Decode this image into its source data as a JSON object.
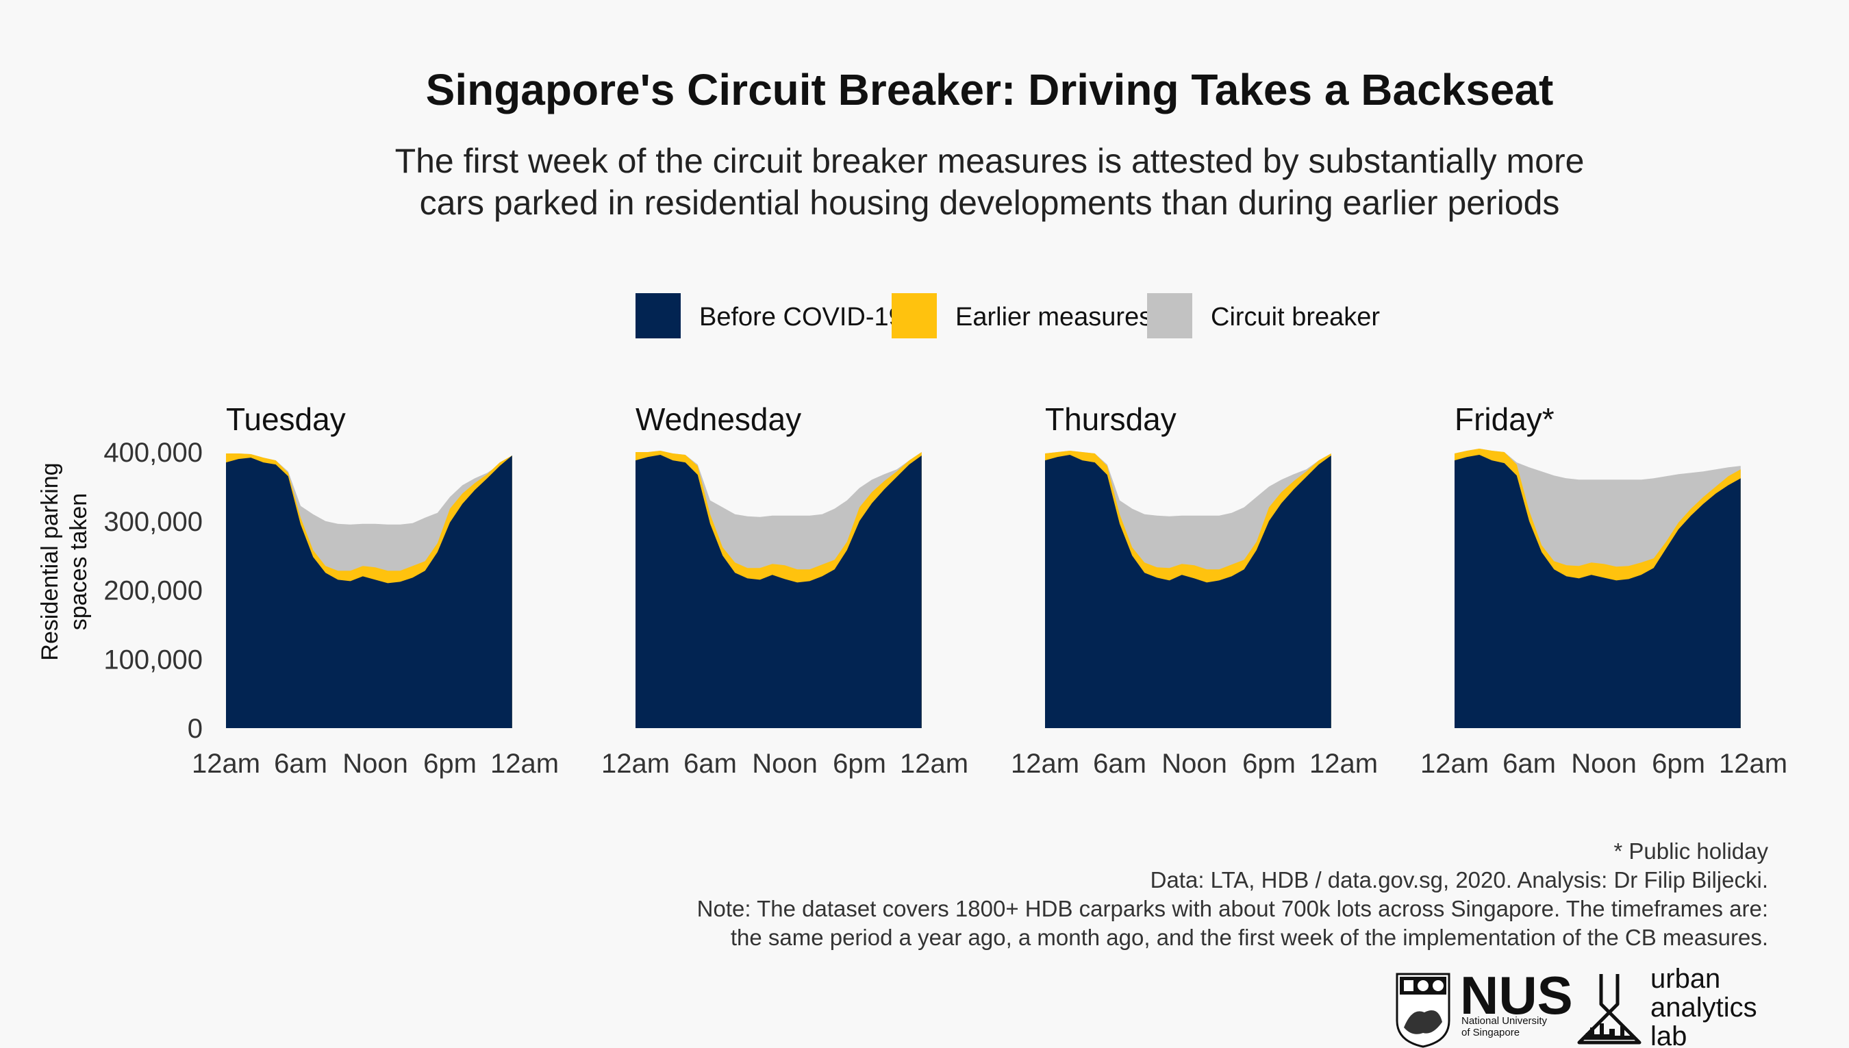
{
  "header": {
    "title": "Singapore's Circuit Breaker: Driving Takes a Backseat",
    "subtitle_lines": [
      "The first week of the circuit breaker measures is attested by substantially more",
      "cars parked in residential housing developments than during earlier periods"
    ]
  },
  "legend": [
    {
      "label": "Before COVID-19",
      "color": "#022452"
    },
    {
      "label": "Earlier measures",
      "color": "#ffc20e"
    },
    {
      "label": "Circuit breaker",
      "color": "#c2c2c2"
    }
  ],
  "chart_data": [
    {
      "type": "area",
      "title": "Tuesday",
      "ylabel": "Residential parking spaces taken",
      "ylim": [
        0,
        400000
      ],
      "yticks": [
        0,
        100000,
        200000,
        300000,
        400000
      ],
      "ytick_labels": [
        "0",
        "100,000",
        "200,000",
        "300,000",
        "400,000"
      ],
      "xlim": [
        0,
        24
      ],
      "xticks": [
        0,
        6,
        12,
        18,
        24
      ],
      "xtick_labels": [
        "12am",
        "6am",
        "Noon",
        "6pm",
        "12am"
      ],
      "x": [
        0,
        1,
        2,
        3,
        4,
        5,
        6,
        7,
        8,
        9,
        10,
        11,
        12,
        13,
        14,
        15,
        16,
        17,
        18,
        19,
        20,
        21,
        22,
        23
      ],
      "series": [
        {
          "name": "Before COVID-19",
          "color": "#022452",
          "values": [
            385000,
            390000,
            392000,
            385000,
            382000,
            365000,
            295000,
            248000,
            225000,
            215000,
            213000,
            220000,
            215000,
            210000,
            212000,
            218000,
            228000,
            255000,
            298000,
            325000,
            345000,
            362000,
            380000,
            395000
          ]
        },
        {
          "name": "Earlier measures",
          "color": "#ffc20e",
          "values": [
            398000,
            398000,
            397000,
            392000,
            388000,
            370000,
            305000,
            258000,
            235000,
            228000,
            228000,
            235000,
            233000,
            228000,
            228000,
            235000,
            242000,
            268000,
            318000,
            340000,
            355000,
            368000,
            385000,
            395000
          ]
        },
        {
          "name": "Circuit breaker",
          "color": "#c2c2c2",
          "values": [
            398000,
            398000,
            397000,
            392000,
            388000,
            372000,
            322000,
            310000,
            300000,
            296000,
            295000,
            296000,
            296000,
            295000,
            295000,
            297000,
            305000,
            312000,
            335000,
            352000,
            362000,
            370000,
            382000,
            395000
          ]
        }
      ]
    },
    {
      "type": "area",
      "title": "Wednesday",
      "ylim": [
        0,
        400000
      ],
      "xlim": [
        0,
        24
      ],
      "xticks": [
        0,
        6,
        12,
        18,
        24
      ],
      "xtick_labels": [
        "12am",
        "6am",
        "Noon",
        "6pm",
        "12am"
      ],
      "x": [
        0,
        1,
        2,
        3,
        4,
        5,
        6,
        7,
        8,
        9,
        10,
        11,
        12,
        13,
        14,
        15,
        16,
        17,
        18,
        19,
        20,
        21,
        22,
        23
      ],
      "series": [
        {
          "name": "Before COVID-19",
          "color": "#022452",
          "values": [
            388000,
            393000,
            396000,
            388000,
            385000,
            367000,
            296000,
            250000,
            225000,
            217000,
            215000,
            222000,
            216000,
            211000,
            213000,
            220000,
            230000,
            258000,
            300000,
            326000,
            346000,
            364000,
            382000,
            395000
          ]
        },
        {
          "name": "Earlier measures",
          "color": "#ffc20e",
          "values": [
            400000,
            400000,
            402000,
            398000,
            396000,
            380000,
            310000,
            262000,
            240000,
            232000,
            232000,
            238000,
            236000,
            230000,
            230000,
            237000,
            244000,
            270000,
            320000,
            342000,
            358000,
            372000,
            388000,
            400000
          ]
        },
        {
          "name": "Circuit breaker",
          "color": "#c2c2c2",
          "values": [
            400000,
            400000,
            402000,
            398000,
            396000,
            382000,
            330000,
            320000,
            310000,
            307000,
            306000,
            308000,
            308000,
            308000,
            308000,
            310000,
            318000,
            330000,
            348000,
            360000,
            368000,
            375000,
            388000,
            400000
          ]
        }
      ]
    },
    {
      "type": "area",
      "title": "Thursday",
      "ylim": [
        0,
        400000
      ],
      "xlim": [
        0,
        24
      ],
      "xticks": [
        0,
        6,
        12,
        18,
        24
      ],
      "xtick_labels": [
        "12am",
        "6am",
        "Noon",
        "6pm",
        "12am"
      ],
      "x": [
        0,
        1,
        2,
        3,
        4,
        5,
        6,
        7,
        8,
        9,
        10,
        11,
        12,
        13,
        14,
        15,
        16,
        17,
        18,
        19,
        20,
        21,
        22,
        23
      ],
      "series": [
        {
          "name": "Before COVID-19",
          "color": "#022452",
          "values": [
            388000,
            393000,
            396000,
            388000,
            385000,
            367000,
            296000,
            250000,
            225000,
            218000,
            214000,
            222000,
            217000,
            211000,
            214000,
            220000,
            230000,
            258000,
            300000,
            326000,
            346000,
            364000,
            382000,
            395000
          ]
        },
        {
          "name": "Earlier measures",
          "color": "#ffc20e",
          "values": [
            398000,
            400000,
            402000,
            400000,
            398000,
            380000,
            310000,
            262000,
            240000,
            233000,
            232000,
            238000,
            236000,
            230000,
            230000,
            237000,
            244000,
            270000,
            320000,
            342000,
            358000,
            372000,
            388000,
            398000
          ]
        },
        {
          "name": "Circuit breaker",
          "color": "#c2c2c2",
          "values": [
            398000,
            400000,
            402000,
            400000,
            398000,
            382000,
            330000,
            318000,
            310000,
            308000,
            307000,
            308000,
            308000,
            308000,
            308000,
            312000,
            320000,
            335000,
            350000,
            360000,
            368000,
            375000,
            388000,
            398000
          ]
        }
      ]
    },
    {
      "type": "area",
      "title": "Friday*",
      "ylim": [
        0,
        400000
      ],
      "xlim": [
        0,
        24
      ],
      "xticks": [
        0,
        6,
        12,
        18,
        24
      ],
      "xtick_labels": [
        "12am",
        "6am",
        "Noon",
        "6pm",
        "12am"
      ],
      "x": [
        0,
        1,
        2,
        3,
        4,
        5,
        6,
        7,
        8,
        9,
        10,
        11,
        12,
        13,
        14,
        15,
        16,
        17,
        18,
        19,
        20,
        21,
        22,
        23
      ],
      "series": [
        {
          "name": "Before COVID-19",
          "color": "#022452",
          "values": [
            388000,
            393000,
            396000,
            388000,
            384000,
            366000,
            300000,
            255000,
            230000,
            220000,
            217000,
            222000,
            218000,
            214000,
            216000,
            222000,
            232000,
            260000,
            288000,
            308000,
            325000,
            340000,
            352000,
            362000
          ]
        },
        {
          "name": "Earlier measures",
          "color": "#ffc20e",
          "values": [
            398000,
            402000,
            405000,
            402000,
            400000,
            382000,
            315000,
            265000,
            242000,
            236000,
            235000,
            240000,
            238000,
            234000,
            235000,
            240000,
            246000,
            270000,
            298000,
            318000,
            335000,
            350000,
            365000,
            375000
          ]
        },
        {
          "name": "Circuit breaker",
          "color": "#c2c2c2",
          "values": [
            398000,
            402000,
            405000,
            402000,
            400000,
            385000,
            378000,
            372000,
            366000,
            362000,
            360000,
            360000,
            360000,
            360000,
            360000,
            360000,
            362000,
            365000,
            368000,
            370000,
            372000,
            375000,
            378000,
            380000
          ]
        }
      ]
    }
  ],
  "footer": {
    "lines": [
      "* Public holiday",
      "Data: LTA, HDB / data.gov.sg, 2020. Analysis: Dr Filip Biljecki.",
      "Note: The dataset covers 1800+ HDB carparks with about 700k lots across Singapore. The timeframes are:",
      "the same period a year ago, a month ago, and the first week of the implementation of the CB measures."
    ]
  },
  "logos": {
    "nus_name": "NUS",
    "nus_sub_lines": [
      "National University",
      "of Singapore"
    ],
    "ual_lines": [
      "urban",
      "analytics",
      "lab"
    ]
  }
}
